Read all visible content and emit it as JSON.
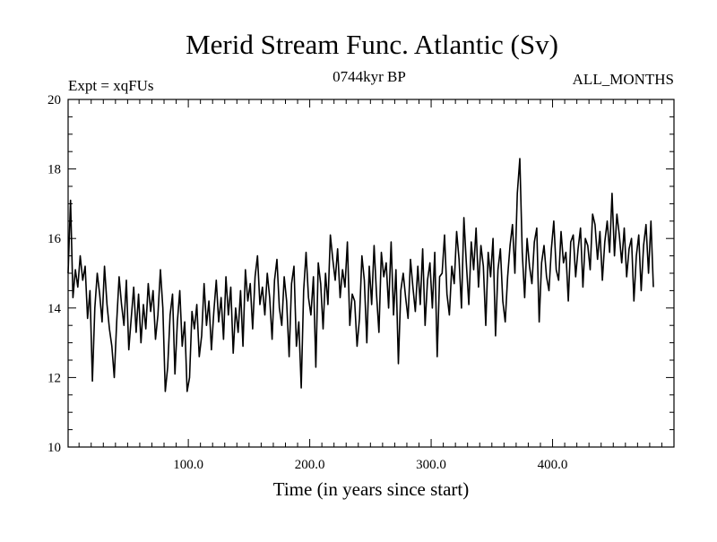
{
  "chart_data": {
    "type": "line",
    "title": "Merid Stream Func. Atlantic (Sv)",
    "subtitle_left": "Expt = xqFUs",
    "subtitle_center": "0744kyr BP",
    "subtitle_right": "ALL_MONTHS",
    "xlabel": "Time (in years since start)",
    "ylabel": "",
    "xlim": [
      1,
      500
    ],
    "ylim": [
      10,
      20
    ],
    "x_ticks": [
      100,
      200,
      300,
      400
    ],
    "x_tick_labels": [
      "100.0",
      "200.0",
      "300.0",
      "400.0"
    ],
    "y_ticks": [
      10,
      12,
      14,
      16,
      18,
      20
    ],
    "y_tick_labels": [
      "10",
      "12",
      "14",
      "16",
      "18",
      "20"
    ],
    "series": [
      {
        "name": "Merid Stream Func. Atlantic",
        "color": "#000000",
        "x_start": 1,
        "x_step": 2,
        "values": [
          15.0,
          17.1,
          14.3,
          15.1,
          14.6,
          15.5,
          14.8,
          15.2,
          13.7,
          14.5,
          11.9,
          14.0,
          15.0,
          14.4,
          13.6,
          15.2,
          14.1,
          13.4,
          12.9,
          12.0,
          13.6,
          14.9,
          14.1,
          13.5,
          14.8,
          12.8,
          13.7,
          14.6,
          13.3,
          14.4,
          13.0,
          14.1,
          13.4,
          14.7,
          13.9,
          14.5,
          13.1,
          13.8,
          15.1,
          14.0,
          11.6,
          12.3,
          13.8,
          14.4,
          12.1,
          13.6,
          14.5,
          12.9,
          13.6,
          11.6,
          12.0,
          13.9,
          13.4,
          14.1,
          12.6,
          13.2,
          14.7,
          13.5,
          14.2,
          12.8,
          13.9,
          14.8,
          13.6,
          14.3,
          13.1,
          14.9,
          13.8,
          14.6,
          12.7,
          14.0,
          13.3,
          14.5,
          12.9,
          15.1,
          14.2,
          14.7,
          13.4,
          14.9,
          15.5,
          14.1,
          14.6,
          13.8,
          15.0,
          14.3,
          13.1,
          14.8,
          15.4,
          14.0,
          13.5,
          14.9,
          14.2,
          12.6,
          14.7,
          15.2,
          12.9,
          13.6,
          11.7,
          14.5,
          15.6,
          14.3,
          13.8,
          14.9,
          12.3,
          15.3,
          14.7,
          13.4,
          15.0,
          14.1,
          16.1,
          15.4,
          14.8,
          15.7,
          14.3,
          15.1,
          14.6,
          15.9,
          13.5,
          14.4,
          14.2,
          12.9,
          13.7,
          15.5,
          14.8,
          13.0,
          15.2,
          14.1,
          15.8,
          14.4,
          13.3,
          15.6,
          14.9,
          15.3,
          14.0,
          15.9,
          13.8,
          15.1,
          12.4,
          14.5,
          15.0,
          14.3,
          13.7,
          15.4,
          14.6,
          13.9,
          15.2,
          14.1,
          15.7,
          13.5,
          14.8,
          15.3,
          14.0,
          15.6,
          12.6,
          14.9,
          15.0,
          16.1,
          14.4,
          13.8,
          15.2,
          14.7,
          16.2,
          15.4,
          14.0,
          16.6,
          15.3,
          14.1,
          15.9,
          15.1,
          16.3,
          14.6,
          15.8,
          15.2,
          13.5,
          15.6,
          14.9,
          16.0,
          13.2,
          15.1,
          15.7,
          14.2,
          13.6,
          14.9,
          15.8,
          16.4,
          15.0,
          17.3,
          18.3,
          15.6,
          14.3,
          16.0,
          15.2,
          14.7,
          15.9,
          16.3,
          13.6,
          15.3,
          15.8,
          14.9,
          14.5,
          15.7,
          16.5,
          15.1,
          14.8,
          16.2,
          15.3,
          15.6,
          14.2,
          15.9,
          16.1,
          14.9,
          15.7,
          16.3,
          14.6,
          16.0,
          15.8,
          15.1,
          16.7,
          16.4,
          15.4,
          16.2,
          14.8,
          15.9,
          16.5,
          15.6,
          17.3,
          15.5,
          16.7,
          16.1,
          15.3,
          16.3,
          14.9,
          15.7,
          16.0,
          14.2,
          15.5,
          16.1,
          14.5,
          15.8,
          16.4,
          15.0,
          16.5,
          14.6
        ]
      }
    ]
  }
}
